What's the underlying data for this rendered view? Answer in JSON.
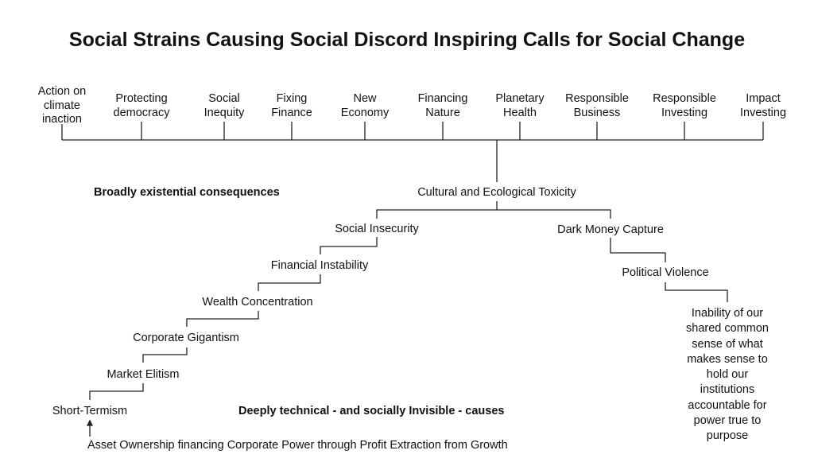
{
  "title": "Social Strains Causing Social Discord Inspiring Calls for Social Change",
  "top_labels": [
    "Action on\nclimate\ninaction",
    "Protecting\ndemocracy",
    "Social\nInequity",
    "Fixing\nFinance",
    "New\nEconomy",
    "Financing\nNature",
    "Planetary\nHealth",
    "Responsible\nBusiness",
    "Responsible\nInvesting",
    "Impact\nInvesting"
  ],
  "section_top": "Broadly existential consequences",
  "section_bottom": "Deeply technical - and socially Invisible - causes",
  "nodes": {
    "root": "Cultural and Ecological Toxicity",
    "social_insecurity": "Social Insecurity",
    "financial_instability": "Financial Instability",
    "wealth_concentration": "Wealth Concentration",
    "corporate_gigantism": "Corporate Gigantism",
    "market_elitism": "Market Elitism",
    "short_termism": "Short-Termism",
    "dark_money": "Dark Money Capture",
    "political_violence": "Political Violence",
    "inability": "Inability of our\nshared common\nsense of what\nmakes sense to\nhold our\ninstitutions\naccountable for\npower true to\npurpose",
    "asset_ownership": "Asset Ownership financing Corporate Power through Profit Extraction from Growth"
  }
}
